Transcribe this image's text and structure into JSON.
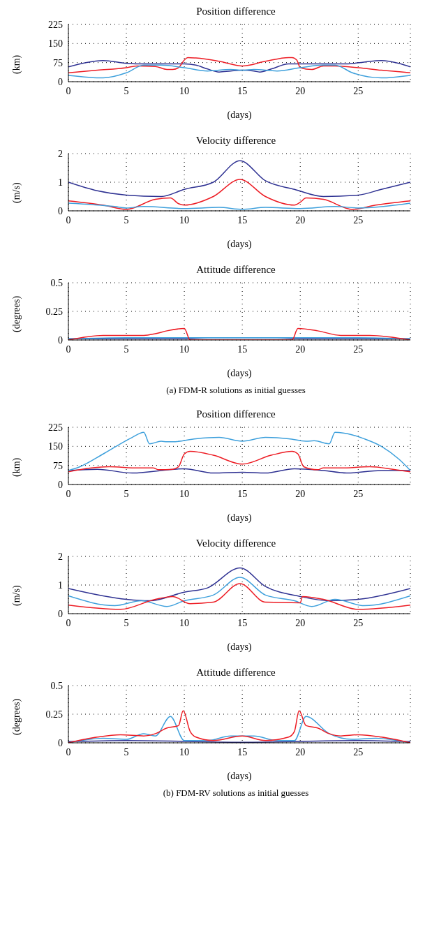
{
  "chart_data": [
    {
      "type": "line",
      "title": "Position difference",
      "xlabel": "(days)",
      "ylabel": "(km)",
      "xlim": [
        0,
        29.5
      ],
      "xticks": [
        0,
        5,
        10,
        15,
        20,
        25
      ],
      "ylim": [
        0,
        225
      ],
      "yticks": [
        0,
        75,
        150,
        225
      ],
      "grid": true,
      "marker": "none",
      "line_style": "solid",
      "series": [
        {
          "color": "#2e3192",
          "x": [
            0,
            1.5,
            3,
            5,
            6,
            8,
            10,
            11,
            12,
            13,
            14,
            15,
            16,
            16.5,
            17.5,
            19,
            21,
            24,
            25.5,
            27,
            28.5,
            29.5
          ],
          "values": [
            58,
            75,
            83,
            72,
            70,
            70,
            70,
            65,
            50,
            38,
            42,
            45,
            42,
            38,
            50,
            70,
            70,
            70,
            77,
            83,
            72,
            58
          ]
        },
        {
          "color": "#ed1c24",
          "x": [
            0,
            2.5,
            5,
            6,
            7.5,
            8.5,
            9,
            9.5,
            10,
            10.3,
            11,
            13,
            15,
            17,
            19,
            19.3,
            19.7,
            20,
            21,
            22,
            23,
            25,
            27,
            29.5
          ],
          "values": [
            35,
            45,
            55,
            62,
            60,
            48,
            48,
            55,
            85,
            95,
            93,
            80,
            62,
            80,
            95,
            95,
            85,
            55,
            48,
            62,
            62,
            55,
            45,
            35
          ]
        },
        {
          "color": "#3ea0dc",
          "x": [
            0,
            3,
            5,
            6.5,
            8,
            10,
            12,
            14,
            15,
            16,
            18,
            20,
            22,
            23,
            24.5,
            27,
            29.5
          ],
          "values": [
            25,
            15,
            35,
            65,
            65,
            55,
            42,
            48,
            45,
            48,
            42,
            55,
            65,
            65,
            35,
            15,
            25
          ]
        }
      ]
    },
    {
      "type": "line",
      "title": "Velocity difference",
      "xlabel": "(days)",
      "ylabel": "(m/s)",
      "xlim": [
        0,
        29.5
      ],
      "xticks": [
        0,
        5,
        10,
        15,
        20,
        25
      ],
      "ylim": [
        0,
        2
      ],
      "yticks": [
        0,
        1,
        2
      ],
      "grid": true,
      "marker": "none",
      "line_style": "solid",
      "series": [
        {
          "color": "#2e3192",
          "x": [
            0,
            2.5,
            5,
            8,
            10,
            12.5,
            14.8,
            17,
            19.5,
            22,
            25,
            27,
            29.5
          ],
          "values": [
            1.0,
            0.7,
            0.55,
            0.5,
            0.75,
            1.0,
            1.75,
            1.05,
            0.75,
            0.5,
            0.55,
            0.75,
            1.0
          ]
        },
        {
          "color": "#ed1c24",
          "x": [
            0,
            3,
            5,
            7.5,
            8.8,
            9.5,
            10,
            12.5,
            14.8,
            17,
            19.5,
            20,
            20.5,
            22,
            24.5,
            26.5,
            29.5
          ],
          "values": [
            0.35,
            0.2,
            0.05,
            0.4,
            0.45,
            0.25,
            0.2,
            0.5,
            1.1,
            0.5,
            0.2,
            0.3,
            0.45,
            0.4,
            0.05,
            0.2,
            0.35
          ]
        },
        {
          "color": "#3ea0dc",
          "x": [
            0,
            4,
            5,
            6.5,
            10,
            13,
            15,
            17,
            20,
            23,
            25,
            29.5
          ],
          "values": [
            0.27,
            0.15,
            0.1,
            0.15,
            0.08,
            0.12,
            0.05,
            0.12,
            0.08,
            0.15,
            0.1,
            0.27
          ]
        }
      ]
    },
    {
      "type": "line",
      "title": "Attitude difference",
      "xlabel": "(days)",
      "ylabel": "(degrees)",
      "xlim": [
        0,
        29.5
      ],
      "xticks": [
        0,
        5,
        10,
        15,
        20,
        25
      ],
      "ylim": [
        0,
        0.5
      ],
      "yticks": [
        0,
        0.25,
        0.5
      ],
      "grid": true,
      "marker": "none",
      "line_style": "solid",
      "annotations": [
        "(a)  FDM-R solutions as initial guesses"
      ],
      "series": [
        {
          "color": "#2e3192",
          "x": [
            0,
            5,
            10,
            12,
            15,
            18,
            20,
            25,
            29.5
          ],
          "values": [
            0.01,
            0.01,
            0.01,
            0.02,
            0.02,
            0.02,
            0.01,
            0.01,
            0.01
          ]
        },
        {
          "color": "#3ea0dc",
          "x": [
            0,
            5,
            10,
            15,
            20,
            25,
            29.5
          ],
          "values": [
            0.01,
            0.02,
            0.02,
            0.02,
            0.02,
            0.02,
            0.01
          ]
        },
        {
          "color": "#ed1c24",
          "x": [
            0,
            3,
            6.5,
            7.5,
            8.5,
            10,
            10.5,
            19.3,
            19.8,
            21.5,
            23.5,
            26,
            29.5
          ],
          "values": [
            0,
            0.04,
            0.04,
            0.055,
            0.08,
            0.1,
            0,
            0,
            0.1,
            0.08,
            0.04,
            0.04,
            0
          ]
        }
      ]
    },
    {
      "type": "line",
      "title": "Position difference",
      "xlabel": "(days)",
      "ylabel": "(km)",
      "xlim": [
        0,
        29.5
      ],
      "xticks": [
        0,
        5,
        10,
        15,
        20,
        25
      ],
      "ylim": [
        0,
        225
      ],
      "yticks": [
        0,
        75,
        150,
        225
      ],
      "grid": true,
      "marker": "none",
      "line_style": "solid",
      "series": [
        {
          "color": "#2e3192",
          "x": [
            0,
            2.5,
            5.5,
            10,
            12.5,
            15,
            17,
            19.5,
            22,
            24,
            27,
            29.5
          ],
          "values": [
            55,
            60,
            45,
            62,
            45,
            48,
            45,
            62,
            55,
            45,
            55,
            55
          ]
        },
        {
          "color": "#3ea0dc",
          "x": [
            0,
            1,
            3,
            4.5,
            5.5,
            6.5,
            7,
            8,
            8.5,
            9,
            11,
            13,
            15,
            17,
            19,
            20.5,
            21.2,
            22.5,
            23,
            24.5,
            25.5,
            27,
            28.5,
            29.5
          ],
          "values": [
            55,
            70,
            120,
            160,
            185,
            205,
            160,
            170,
            168,
            168,
            180,
            185,
            170,
            185,
            180,
            170,
            172,
            160,
            205,
            195,
            180,
            150,
            100,
            55
          ]
        },
        {
          "color": "#ed1c24",
          "x": [
            0,
            2,
            3.5,
            6,
            7.3,
            7.8,
            9,
            9.5,
            10,
            10.5,
            12.5,
            15,
            17.5,
            19.3,
            19.8,
            20.3,
            21.5,
            22,
            23.5,
            26,
            28,
            29.5
          ],
          "values": [
            50,
            65,
            70,
            65,
            65,
            58,
            60,
            70,
            120,
            130,
            115,
            80,
            115,
            130,
            120,
            70,
            58,
            65,
            65,
            70,
            60,
            50
          ]
        }
      ]
    },
    {
      "type": "line",
      "title": "Velocity difference",
      "xlabel": "(days)",
      "ylabel": "(m/s)",
      "xlim": [
        0,
        29.5
      ],
      "xticks": [
        0,
        5,
        10,
        15,
        20,
        25
      ],
      "ylim": [
        0,
        2
      ],
      "yticks": [
        0,
        1,
        2
      ],
      "grid": true,
      "marker": "none",
      "line_style": "solid",
      "series": [
        {
          "color": "#2e3192",
          "x": [
            0,
            5,
            7,
            10,
            12,
            14.8,
            17,
            20,
            22.5,
            25,
            29.5
          ],
          "values": [
            0.88,
            0.5,
            0.45,
            0.75,
            0.9,
            1.6,
            0.95,
            0.6,
            0.45,
            0.5,
            0.88
          ]
        },
        {
          "color": "#3ea0dc",
          "x": [
            0,
            4,
            6.3,
            8.5,
            10,
            12.5,
            14.8,
            17,
            19.5,
            21,
            23,
            25.5,
            29.5
          ],
          "values": [
            0.62,
            0.28,
            0.45,
            0.25,
            0.45,
            0.65,
            1.27,
            0.65,
            0.45,
            0.25,
            0.5,
            0.28,
            0.62
          ]
        },
        {
          "color": "#ed1c24",
          "x": [
            0,
            4.5,
            7.5,
            9,
            10.5,
            12.5,
            14.8,
            17,
            20,
            20.2,
            22,
            25,
            29.5
          ],
          "values": [
            0.3,
            0.15,
            0.5,
            0.6,
            0.35,
            0.4,
            1.05,
            0.4,
            0.38,
            0.6,
            0.5,
            0.15,
            0.3
          ]
        }
      ]
    },
    {
      "type": "line",
      "title": "Attitude difference",
      "xlabel": "(days)",
      "ylabel": "(degrees)",
      "xlim": [
        0,
        29.5
      ],
      "xticks": [
        0,
        5,
        10,
        15,
        20,
        25
      ],
      "ylim": [
        0,
        0.5
      ],
      "yticks": [
        0,
        0.25,
        0.5
      ],
      "grid": true,
      "marker": "none",
      "line_style": "solid",
      "annotations": [
        "(b)  FDM-RV solutions as initial guesses"
      ],
      "series": [
        {
          "color": "#2e3192",
          "x": [
            0,
            5,
            15,
            25,
            29.5
          ],
          "values": [
            0.01,
            0.02,
            0.005,
            0.02,
            0.01
          ]
        },
        {
          "color": "#3ea0dc",
          "x": [
            0,
            3,
            5,
            6.5,
            7.5,
            8.8,
            10,
            12,
            14,
            16,
            18,
            19.5,
            20.5,
            22.5,
            24.5,
            26.5,
            29.5
          ],
          "values": [
            0,
            0.04,
            0.03,
            0.08,
            0.06,
            0.23,
            0.02,
            0.02,
            0.06,
            0.06,
            0.02,
            0.02,
            0.23,
            0.08,
            0.03,
            0.04,
            0
          ]
        },
        {
          "color": "#ed1c24",
          "x": [
            0,
            2.5,
            4.5,
            6.5,
            7.5,
            8.5,
            9.5,
            9.9,
            10.5,
            11,
            12.5,
            15,
            17,
            19,
            19.5,
            19.9,
            20.5,
            21.5,
            22.5,
            23.5,
            25,
            27,
            29.5
          ],
          "values": [
            0,
            0.05,
            0.07,
            0.06,
            0.08,
            0.13,
            0.15,
            0.28,
            0.1,
            0.05,
            0.02,
            0.06,
            0.02,
            0.05,
            0.1,
            0.28,
            0.15,
            0.13,
            0.08,
            0.06,
            0.07,
            0.05,
            0
          ]
        }
      ]
    }
  ]
}
